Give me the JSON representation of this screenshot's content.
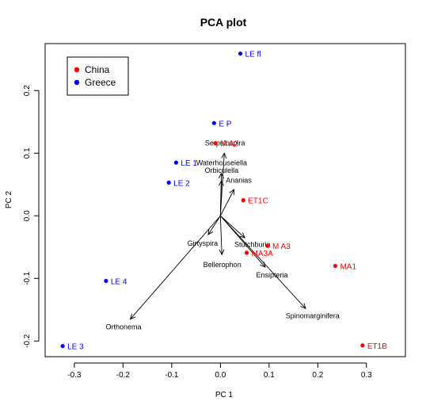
{
  "chart_data": {
    "type": "scatter",
    "title": "PCA plot",
    "xlabel": "PC 1",
    "ylabel": "PC 2",
    "xlim": [
      -0.36,
      0.38
    ],
    "ylim": [
      -0.225,
      0.275
    ],
    "xticks": [
      -0.3,
      -0.2,
      -0.1,
      0.0,
      0.1,
      0.2,
      0.3
    ],
    "xtick_labels": [
      "-0.3",
      "-0.2",
      "-0.1",
      "0.0",
      "0.1",
      "0.2",
      "0.3"
    ],
    "yticks": [
      -0.2,
      -0.1,
      0.0,
      0.1,
      0.2
    ],
    "ytick_labels": [
      "-0.2",
      "-0.1",
      "0.0",
      "0.1",
      "0.2"
    ],
    "grid": false,
    "legend_position": "top-left",
    "legend": [
      {
        "name": "China",
        "color": "#ff0000"
      },
      {
        "name": "Greece",
        "color": "#0000ff"
      }
    ],
    "series": [
      {
        "name": "China",
        "color": "#ff0000",
        "points": [
          {
            "label": "M A2",
            "x": -0.01,
            "y": 0.116
          },
          {
            "label": "ET1C",
            "x": 0.047,
            "y": 0.025
          },
          {
            "label": "M A3",
            "x": 0.097,
            "y": -0.048
          },
          {
            "label": "MA3A",
            "x": 0.054,
            "y": -0.059
          },
          {
            "label": "MA1",
            "x": 0.236,
            "y": -0.08
          },
          {
            "label": "ET1B",
            "x": 0.292,
            "y": -0.207
          }
        ]
      },
      {
        "name": "Greece",
        "color": "#0000ff",
        "points": [
          {
            "label": "LE fl",
            "x": 0.041,
            "y": 0.259
          },
          {
            "label": "E P",
            "x": -0.013,
            "y": 0.148
          },
          {
            "label": "LE 1",
            "x": -0.091,
            "y": 0.085
          },
          {
            "label": "LE 2",
            "x": -0.106,
            "y": 0.053
          },
          {
            "label": "LE 4",
            "x": -0.235,
            "y": -0.104
          },
          {
            "label": "LE 3",
            "x": -0.324,
            "y": -0.208
          }
        ]
      }
    ],
    "loadings": [
      {
        "label": "Serpulospira",
        "x": 0.008,
        "y": 0.1
      },
      {
        "label": "Waterhouseiella",
        "x": 0.002,
        "y": 0.068
      },
      {
        "label": "Orbiculella",
        "x": 0.002,
        "y": 0.056
      },
      {
        "label": "Ananias",
        "x": 0.028,
        "y": 0.042
      },
      {
        "label": "Girtyspira",
        "x": -0.025,
        "y": -0.03
      },
      {
        "label": "Stutchburia",
        "x": 0.05,
        "y": -0.035
      },
      {
        "label": "Bellerophon",
        "x": 0.003,
        "y": -0.062
      },
      {
        "label": "Ensipteria",
        "x": 0.092,
        "y": -0.082
      },
      {
        "label": "Spinomarginifera",
        "x": 0.175,
        "y": -0.148
      },
      {
        "label": "Orthonema",
        "x": -0.185,
        "y": -0.165
      }
    ]
  }
}
